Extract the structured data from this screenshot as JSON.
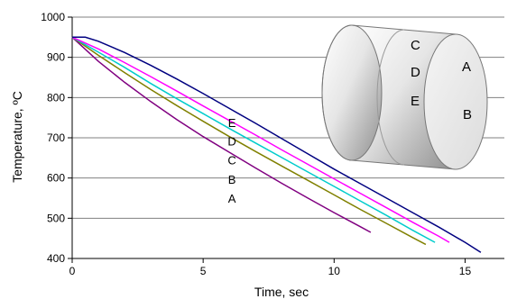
{
  "chart_data": {
    "type": "line",
    "title": "",
    "xlabel": "Time, sec",
    "ylabel": "Temperature, ºC",
    "xlim": [
      0,
      16.5
    ],
    "ylim": [
      400,
      1000
    ],
    "x_ticks": [
      0,
      5,
      10,
      15
    ],
    "y_ticks": [
      400,
      500,
      600,
      700,
      800,
      900,
      1000
    ],
    "grid": "horizontal",
    "legend": "none",
    "series": [
      {
        "name": "A",
        "color": "#800080",
        "points": [
          [
            0,
            950
          ],
          [
            1,
            890
          ],
          [
            2,
            838
          ],
          [
            3,
            790
          ],
          [
            4,
            745
          ],
          [
            5,
            703
          ],
          [
            6,
            664
          ],
          [
            7,
            625
          ],
          [
            8,
            587
          ],
          [
            9,
            550
          ],
          [
            10,
            514
          ],
          [
            11,
            479
          ],
          [
            11.4,
            465
          ]
        ]
      },
      {
        "name": "B",
        "color": "#808000",
        "points": [
          [
            0,
            950
          ],
          [
            1,
            905
          ],
          [
            2,
            862
          ],
          [
            3,
            820
          ],
          [
            4,
            780
          ],
          [
            5,
            741
          ],
          [
            6,
            703
          ],
          [
            7,
            666
          ],
          [
            8,
            630
          ],
          [
            9,
            594
          ],
          [
            10,
            558
          ],
          [
            11,
            522
          ],
          [
            12,
            487
          ],
          [
            13,
            452
          ],
          [
            13.5,
            435
          ]
        ]
      },
      {
        "name": "C",
        "color": "#00cccc",
        "points": [
          [
            0,
            950
          ],
          [
            1,
            913
          ],
          [
            2,
            875
          ],
          [
            3,
            835
          ],
          [
            4,
            797
          ],
          [
            5,
            760
          ],
          [
            6,
            723
          ],
          [
            7,
            687
          ],
          [
            8,
            651
          ],
          [
            9,
            615
          ],
          [
            10,
            579
          ],
          [
            11,
            543
          ],
          [
            12,
            507
          ],
          [
            13,
            470
          ],
          [
            13.85,
            440
          ]
        ]
      },
      {
        "name": "D",
        "color": "#ff00ff",
        "points": [
          [
            0,
            950
          ],
          [
            1,
            921
          ],
          [
            2,
            887
          ],
          [
            3,
            852
          ],
          [
            4,
            816
          ],
          [
            5,
            779
          ],
          [
            6,
            743
          ],
          [
            7,
            707
          ],
          [
            8,
            670
          ],
          [
            9,
            634
          ],
          [
            10,
            598
          ],
          [
            11,
            562
          ],
          [
            12,
            526
          ],
          [
            13,
            490
          ],
          [
            14,
            455
          ],
          [
            14.4,
            440
          ]
        ]
      },
      {
        "name": "E",
        "color": "#000080",
        "points": [
          [
            0,
            950
          ],
          [
            0.5,
            950
          ],
          [
            1,
            940
          ],
          [
            2,
            912
          ],
          [
            3,
            880
          ],
          [
            4,
            846
          ],
          [
            5,
            810
          ],
          [
            6,
            773
          ],
          [
            7,
            736
          ],
          [
            8,
            698
          ],
          [
            9,
            660
          ],
          [
            10,
            622
          ],
          [
            11,
            586
          ],
          [
            12,
            550
          ],
          [
            13,
            514
          ],
          [
            14,
            478
          ],
          [
            15,
            440
          ],
          [
            15.6,
            415
          ]
        ]
      }
    ],
    "annotations": {
      "series_label_positions": [
        {
          "label": "E",
          "x": 6.1,
          "y": 738
        },
        {
          "label": "D",
          "x": 6.1,
          "y": 692
        },
        {
          "label": "C",
          "x": 6.1,
          "y": 645
        },
        {
          "label": "B",
          "x": 6.1,
          "y": 597
        },
        {
          "label": "A",
          "x": 6.1,
          "y": 550
        }
      ]
    }
  },
  "inset": {
    "icon": "cylinder-icon",
    "labels": [
      "C",
      "D",
      "E",
      "A",
      "B"
    ]
  }
}
